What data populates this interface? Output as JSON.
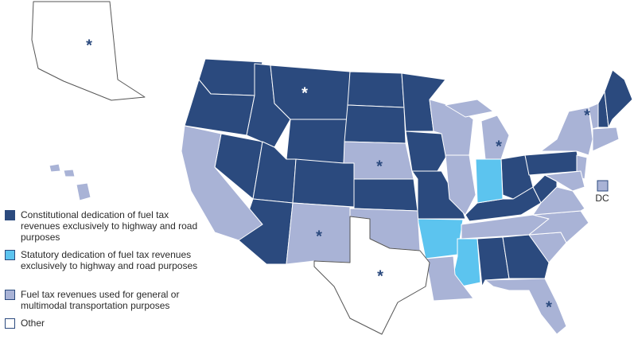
{
  "legend": [
    {
      "label": "Constitutional dedication of fuel tax revenues exclusively to highway and road purposes",
      "color": "#2b4a7e"
    },
    {
      "label": "Statutory dedication of fuel tax revenues exclusively to highway and road purposes",
      "color": "#5cc4ef"
    },
    {
      "label": "Fuel tax revenues used for general or multimodal transportation purposes",
      "color": "#a9b3d6"
    },
    {
      "label": "Other",
      "color": "#ffffff"
    }
  ],
  "dc_label": "DC",
  "markers": [
    "*",
    "*",
    "*",
    "*",
    "*",
    "*",
    "*",
    "*"
  ]
}
